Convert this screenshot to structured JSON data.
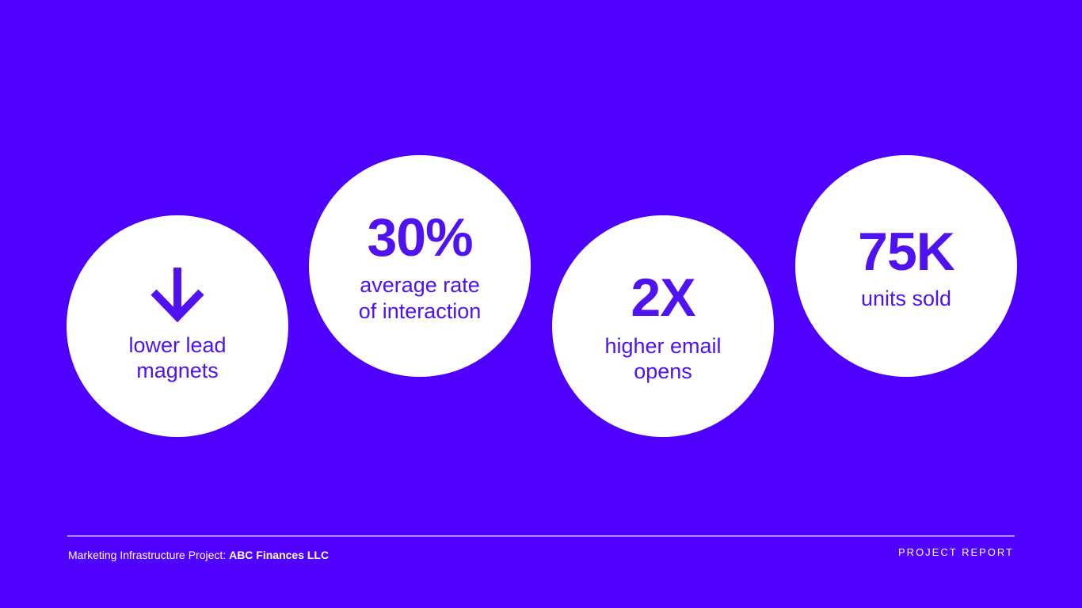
{
  "colors": {
    "background": "#5000ff",
    "circle": "#ffffff",
    "accent": "#4f12f0"
  },
  "stats": [
    {
      "icon": "arrow-down-icon",
      "label_1": "lower lead",
      "label_2": "magnets"
    },
    {
      "value": "30%",
      "label_1": "average rate",
      "label_2": "of interaction"
    },
    {
      "value": "2X",
      "label_1": "higher email",
      "label_2": "opens"
    },
    {
      "value": "75K",
      "label_1": "units sold"
    }
  ],
  "footer": {
    "project_prefix": "Marketing Infrastructure Project: ",
    "client": "ABC Finances LLC",
    "report_label": "PROJECT REPORT"
  }
}
